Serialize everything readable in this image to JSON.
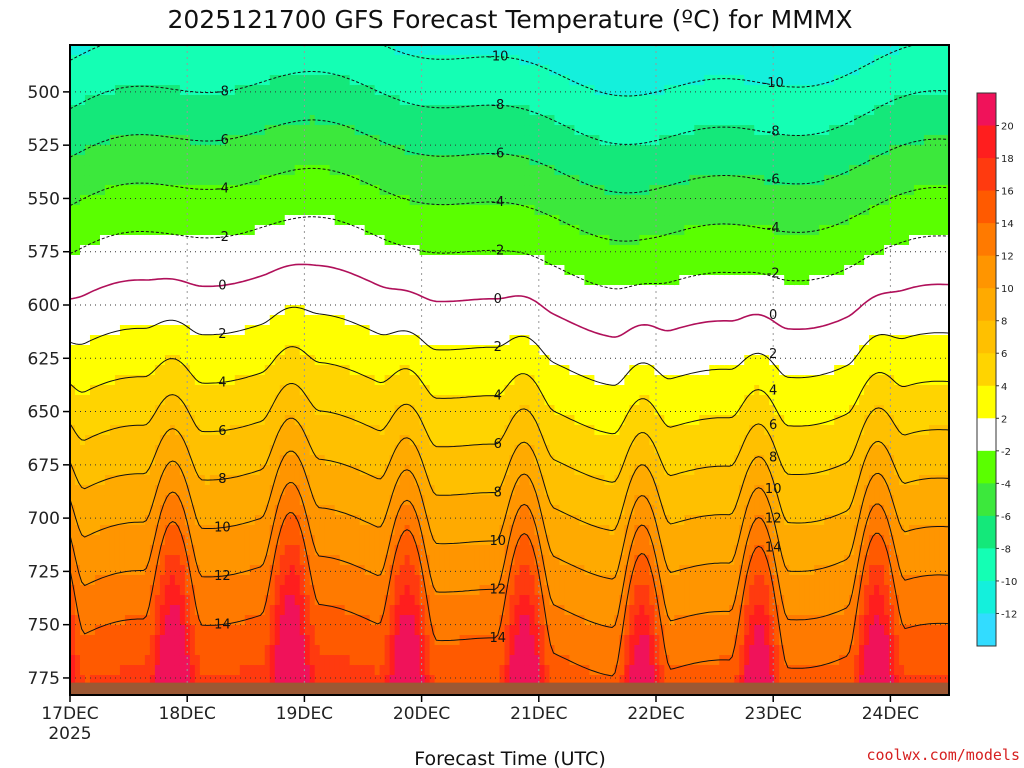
{
  "chart_data": {
    "type": "heatmap",
    "title": "2025121700 GFS Forecast Temperature (ºC) for MMMX",
    "xlabel": "Forecast Time (UTC)",
    "ylabel": "",
    "credit": "coolwx.com/models",
    "x_ticks": [
      "17DEC",
      "18DEC",
      "19DEC",
      "20DEC",
      "21DEC",
      "22DEC",
      "23DEC",
      "24DEC"
    ],
    "x_tick_sublabel": "2025",
    "x_range_days": [
      0,
      7.5
    ],
    "y_ticks": [
      500,
      525,
      550,
      575,
      600,
      625,
      650,
      675,
      700,
      725,
      750,
      775
    ],
    "ylim": [
      478,
      783
    ],
    "colorbar": {
      "labels": [
        "20",
        "18",
        "16",
        "14",
        "12",
        "10",
        "8",
        "6",
        "4",
        "2",
        "-2",
        "-4",
        "-6",
        "-8",
        "-10",
        "-12"
      ],
      "colors": [
        "#f0125a",
        "#ff1e1e",
        "#ff3a0f",
        "#ff5a00",
        "#ff7a00",
        "#ff9500",
        "#ffaa00",
        "#ffc000",
        "#ffd400",
        "#ffff00",
        "#ffffff",
        "#5aff00",
        "#3ce83c",
        "#14e87a",
        "#14ffb4",
        "#14f0dc",
        "#32dcff"
      ]
    },
    "contour_levels": [
      -10,
      -8,
      -6,
      -4,
      -2,
      0,
      2,
      4,
      6,
      8,
      10,
      12,
      14
    ],
    "contour_labels": [
      "-10",
      "-8",
      "-6",
      "-4",
      "-2",
      "0",
      "2",
      "4",
      "6",
      "8",
      "10",
      "12",
      "14"
    ]
  }
}
